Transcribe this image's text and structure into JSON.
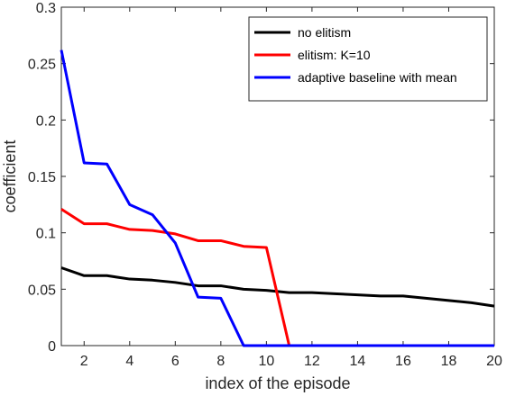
{
  "chart_data": {
    "type": "line",
    "xlabel": "index of the episode",
    "ylabel": "coefficient",
    "xlim": [
      1,
      20
    ],
    "ylim": [
      0,
      0.3
    ],
    "xticks": [
      2,
      4,
      6,
      8,
      10,
      12,
      14,
      16,
      18,
      20
    ],
    "yticks": [
      0,
      0.05,
      0.1,
      0.15,
      0.2,
      0.25,
      0.3
    ],
    "ytick_labels": [
      "0",
      "0.05",
      "0.1",
      "0.15",
      "0.2",
      "0.25",
      "0.3"
    ],
    "grid": false,
    "legend_position": "top-right",
    "x": [
      1,
      2,
      3,
      4,
      5,
      6,
      7,
      8,
      9,
      10,
      11,
      12,
      13,
      14,
      15,
      16,
      17,
      18,
      19,
      20
    ],
    "series": [
      {
        "name": "no elitism",
        "color": "#000000",
        "values": [
          0.069,
          0.062,
          0.062,
          0.059,
          0.058,
          0.056,
          0.053,
          0.053,
          0.05,
          0.049,
          0.047,
          0.047,
          0.046,
          0.045,
          0.044,
          0.044,
          0.042,
          0.04,
          0.038,
          0.035
        ]
      },
      {
        "name": "elitism: K=10",
        "color": "#ff0000",
        "values": [
          0.121,
          0.108,
          0.108,
          0.103,
          0.102,
          0.099,
          0.093,
          0.093,
          0.088,
          0.087,
          0,
          0,
          0,
          0,
          0,
          0,
          0,
          0,
          0,
          0
        ]
      },
      {
        "name": "adaptive baseline with mean",
        "color": "#0000ff",
        "values": [
          0.262,
          0.162,
          0.161,
          0.125,
          0.116,
          0.091,
          0.043,
          0.042,
          0,
          0,
          0,
          0,
          0,
          0,
          0,
          0,
          0,
          0,
          0,
          0
        ]
      }
    ]
  }
}
